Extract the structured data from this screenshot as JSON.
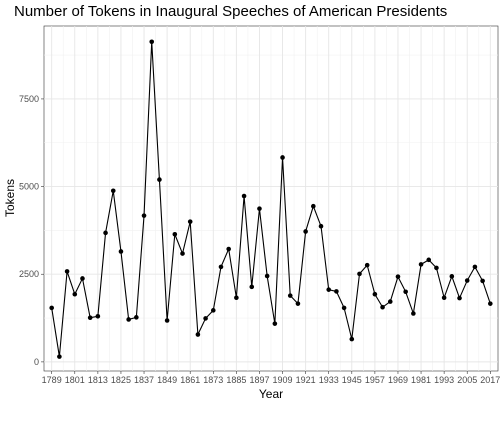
{
  "chart_data": {
    "type": "line",
    "title": "Number of Tokens in Inaugural Speeches of American Presidents",
    "xlabel": "Year",
    "ylabel": "Tokens",
    "xlim": [
      1785,
      2021
    ],
    "ylim": [
      -260,
      9580
    ],
    "x_ticks": [
      1789,
      1801,
      1813,
      1825,
      1837,
      1849,
      1861,
      1873,
      1885,
      1897,
      1909,
      1921,
      1933,
      1945,
      1957,
      1969,
      1981,
      1993,
      2005,
      2017
    ],
    "y_ticks": [
      0,
      2500,
      5000,
      7500
    ],
    "y_tick_labels": [
      "0",
      "2500",
      "5000",
      "7500"
    ],
    "grid": true,
    "legend": "none",
    "series": [
      {
        "color": "#000000",
        "x": [
          1789,
          1793,
          1797,
          1801,
          1805,
          1809,
          1813,
          1817,
          1821,
          1825,
          1829,
          1833,
          1837,
          1841,
          1845,
          1849,
          1853,
          1857,
          1861,
          1865,
          1869,
          1873,
          1877,
          1881,
          1885,
          1889,
          1893,
          1897,
          1901,
          1905,
          1909,
          1913,
          1917,
          1921,
          1925,
          1929,
          1933,
          1937,
          1941,
          1945,
          1949,
          1953,
          1957,
          1961,
          1965,
          1969,
          1973,
          1977,
          1981,
          1985,
          1989,
          1993,
          1997,
          2001,
          2005,
          2009,
          2013,
          2017
        ],
        "values": [
          1540,
          150,
          2580,
          1930,
          2380,
          1260,
          1300,
          3680,
          4880,
          3150,
          1210,
          1270,
          4170,
          9130,
          5200,
          1180,
          3640,
          3090,
          4000,
          780,
          1240,
          1470,
          2710,
          3220,
          1830,
          4730,
          2140,
          4370,
          2450,
          1090,
          5830,
          1890,
          1660,
          3720,
          4440,
          3870,
          2060,
          2010,
          1540,
          650,
          2510,
          2760,
          1930,
          1560,
          1720,
          2430,
          2000,
          1380,
          2780,
          2910,
          2680,
          1830,
          2440,
          1820,
          2320,
          2710,
          2310,
          1660
        ]
      }
    ]
  }
}
